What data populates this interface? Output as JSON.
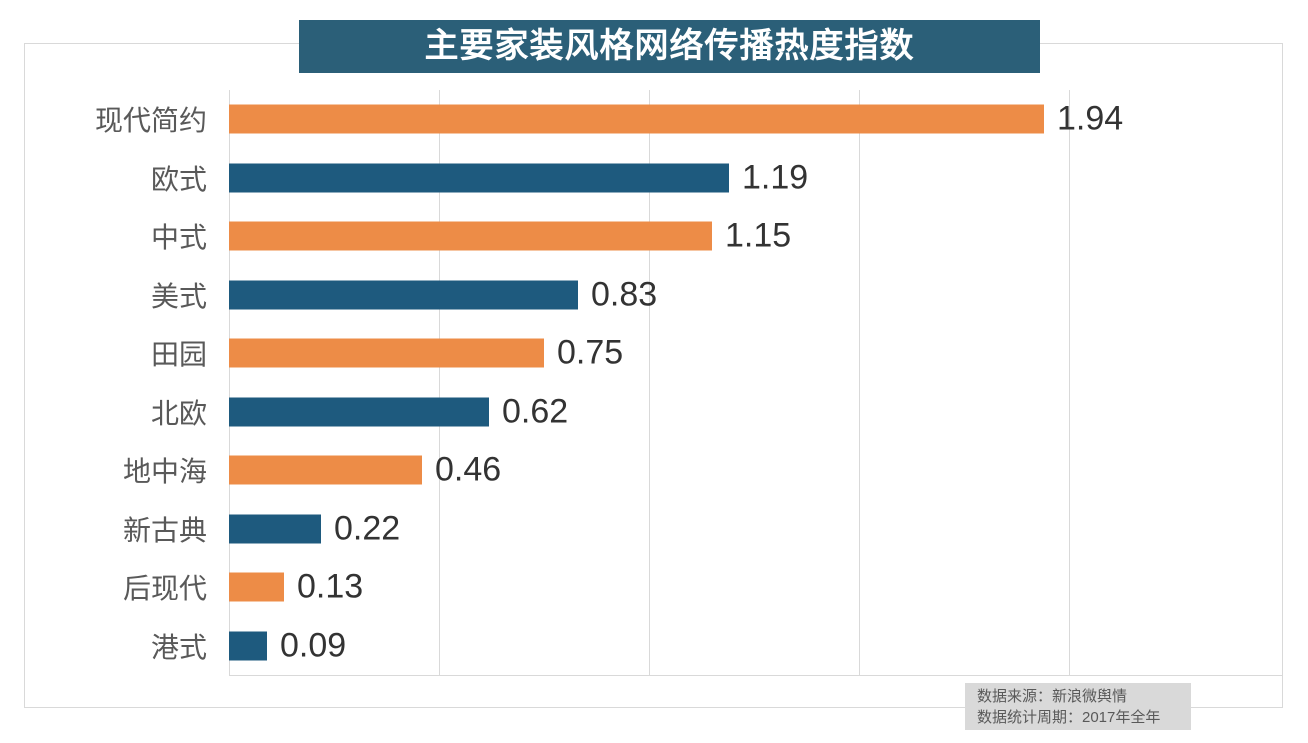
{
  "title": "主要家装风格网络传播热度指数",
  "chart_data": {
    "type": "bar",
    "orientation": "horizontal",
    "title": "主要家装风格网络传播热度指数",
    "categories": [
      "现代简约",
      "欧式",
      "中式",
      "美式",
      "田园",
      "北欧",
      "地中海",
      "新古典",
      "后现代",
      "港式"
    ],
    "values": [
      1.94,
      1.19,
      1.15,
      0.83,
      0.75,
      0.62,
      0.46,
      0.22,
      0.13,
      0.09
    ],
    "value_labels": [
      "1.94",
      "1.19",
      "1.15",
      "0.83",
      "0.75",
      "0.62",
      "0.46",
      "0.22",
      "0.13",
      "0.09"
    ],
    "xlim": [
      0,
      2.5
    ],
    "gridline_interval": 0.5,
    "grid": true,
    "legend": "none",
    "bar_colors_alternating": [
      "#ed8c47",
      "#1e5a7e"
    ]
  },
  "colors": {
    "title_bg": "#2b5f78",
    "title_text": "#ffffff",
    "bar_orange": "#ed8c47",
    "bar_blue": "#1e5a7e",
    "grid_line": "#d9d9d9",
    "frame_border": "#d9d9d9",
    "category_label": "#595959",
    "value_label": "#333333",
    "footer_bg": "#d9d9d9",
    "footer_text": "#595959"
  },
  "footer": {
    "line1": "数据来源：新浪微舆情",
    "line2": "数据统计周期：2017年全年"
  }
}
